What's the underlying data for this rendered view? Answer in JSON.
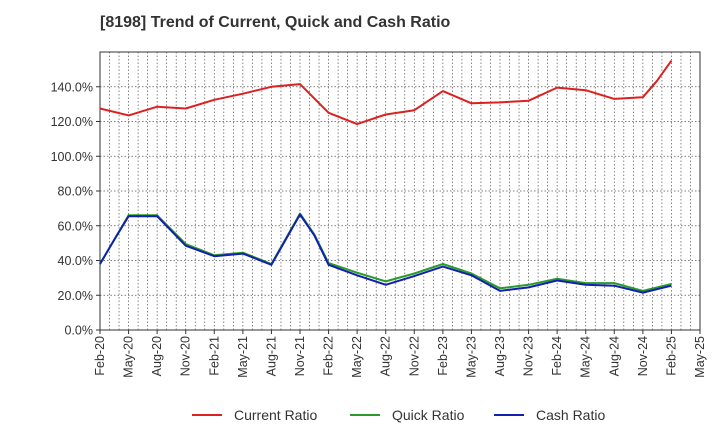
{
  "chart_data": {
    "type": "line",
    "title": "[8198]  Trend of Current, Quick and Cash Ratio",
    "xlabel": "",
    "ylabel": "",
    "ylim": [
      0,
      160
    ],
    "yticks": [
      0,
      20,
      40,
      60,
      80,
      100,
      120,
      140
    ],
    "ytick_labels": [
      "0.0%",
      "20.0%",
      "40.0%",
      "60.0%",
      "80.0%",
      "100.0%",
      "120.0%",
      "140.0%"
    ],
    "x_tick_labels": [
      "Feb-20",
      "May-20",
      "Aug-20",
      "Nov-20",
      "Feb-21",
      "May-21",
      "Aug-21",
      "Nov-21",
      "Feb-22",
      "May-22",
      "Aug-22",
      "Nov-22",
      "Feb-23",
      "May-23",
      "Aug-23",
      "Nov-23",
      "Feb-24",
      "May-24",
      "Aug-24",
      "Nov-24",
      "Feb-25",
      "May-25"
    ],
    "grid": true,
    "legend_position": "bottom",
    "series": [
      {
        "name": "Current Ratio",
        "color": "#dd2020",
        "x": [
          0,
          1,
          2,
          3,
          4,
          5,
          6,
          7,
          8,
          9,
          10,
          11,
          12,
          13,
          14,
          15,
          16,
          17,
          18,
          19,
          19.5,
          20
        ],
        "values": [
          127.5,
          123.5,
          128.5,
          127.5,
          132.5,
          136,
          140,
          141.5,
          125,
          118.5,
          124,
          126.5,
          137.5,
          130.5,
          131,
          132,
          139.5,
          138,
          133,
          134,
          143.5,
          155
        ]
      },
      {
        "name": "Quick Ratio",
        "color": "#2a9a2a",
        "x": [
          0,
          0.5,
          1,
          2,
          3,
          4,
          5,
          6,
          7,
          7.5,
          8,
          9,
          10,
          11,
          12,
          13,
          14,
          15,
          16,
          17,
          18,
          19,
          20
        ],
        "values": [
          38,
          52,
          66,
          66,
          49.5,
          43,
          44.5,
          38,
          67,
          55,
          38.5,
          33,
          28,
          32.5,
          38,
          32.5,
          24,
          26,
          29.5,
          27,
          27,
          22.5,
          26.5
        ]
      },
      {
        "name": "Cash Ratio",
        "color": "#1020b0",
        "x": [
          0,
          0.5,
          1,
          2,
          3,
          4,
          5,
          6,
          7,
          7.5,
          8,
          9,
          10,
          11,
          12,
          13,
          14,
          15,
          16,
          17,
          18,
          19,
          20
        ],
        "values": [
          38,
          52,
          65.5,
          65.5,
          48.5,
          42.5,
          44,
          37.5,
          66.5,
          54.5,
          37.5,
          31.5,
          26,
          31,
          36.5,
          31.5,
          22.5,
          24.5,
          28.5,
          26,
          25.5,
          21.5,
          25.5
        ]
      }
    ]
  }
}
